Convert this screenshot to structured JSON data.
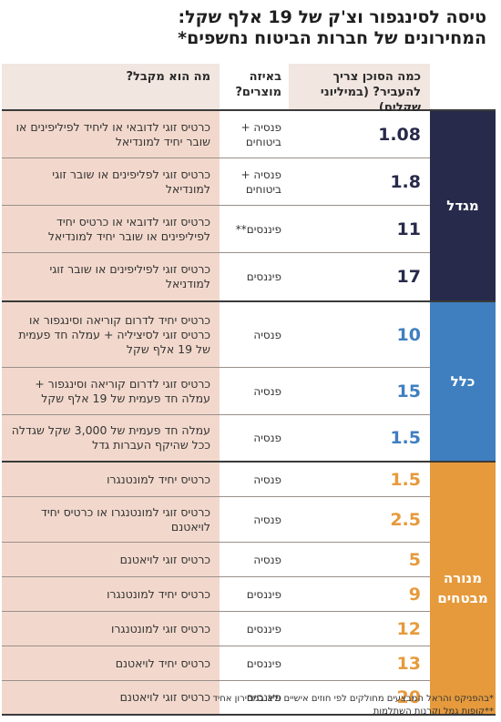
{
  "title": {
    "line1": "טיסה לסינגפור וצ'ק של 19 אלף שקל:",
    "line2": "המחירונים של חברות הביטוח נחשפים*"
  },
  "headers": {
    "amount": "כמה הסוכן צריך להעביר? (במיליוני שקלים)",
    "products": "באיזה מוצרים?",
    "reward": "מה הוא מקבל?"
  },
  "groups": [
    {
      "name": "מגדל",
      "color": "#272a4a",
      "amount_color": "#272a4a",
      "rows": [
        {
          "amount": "1.08",
          "products": "פנסיה + ביטוחים",
          "reward": "כרטיס זוגי לדובאי או ליחיד לפיליפינים או שובר יחיד למונדיאל"
        },
        {
          "amount": "1.8",
          "products": "פנסיה + ביטוחים",
          "reward": "כרטיס זוגי לפליפינים או שובר זוגי למונדיאל"
        },
        {
          "amount": "11",
          "products": "פיננסים**",
          "reward": "כרטיס זוגי לדובאי או כרטיס יחיד לפיליפינים או שובר יחיד למונדיאל"
        },
        {
          "amount": "17",
          "products": "פיננסים",
          "reward": "כרטיס זוגי לפיליפינים או שובר זוגי למודניאל"
        }
      ]
    },
    {
      "name": "כלל",
      "color": "#3f7fc0",
      "amount_color": "#3f7fc0",
      "rows": [
        {
          "amount": "10",
          "products": "פנסיה",
          "reward": "כרטיס יחיד לדרום קוריאה וסינגפור או כרטיס זוגי לסיציליה + עמלה חד פעמית של 19 אלף שקל"
        },
        {
          "amount": "15",
          "products": "פנסיה",
          "reward": "כרטיס זוגי לדרום קוריאה וסינגפור + עמלה חד פעמית של 19 אלף שקל"
        },
        {
          "amount": "1.5",
          "products": "פנסיה",
          "reward": "עמלה חד פעמית של 3,000 שקל שגדלה ככל שהיקף העברות גדל"
        }
      ]
    },
    {
      "name": "מנורה מבטחים",
      "color": "#e69a3c",
      "amount_color": "#e69a3c",
      "rows": [
        {
          "amount": "1.5",
          "products": "פנסיה",
          "reward": "כרטיס יחיד למונטנגרו"
        },
        {
          "amount": "2.5",
          "products": "פנסיה",
          "reward": "כרטיס זוגי למונטנגרו או כרטיס יחיד לויאטנם"
        },
        {
          "amount": "5",
          "products": "פנסיה",
          "reward": "כרטיס זוגי לויאטנם"
        },
        {
          "amount": "9",
          "products": "פיננסים",
          "reward": "כרטיס יחיד למונטנגרו"
        },
        {
          "amount": "12",
          "products": "פיננסים",
          "reward": "כרטיס זוגי למונטנגרו"
        },
        {
          "amount": "13",
          "products": "פיננסים",
          "reward": "כרטיס יחיד לויאטנם"
        },
        {
          "amount": "20",
          "products": "פיננסים",
          "reward": "כרטיס זוגי לויאטנם"
        }
      ]
    }
  ],
  "footnotes": [
    "*בהפניקס והראל המבצעים מחולקים לפי חוזים אישיים ולא במחירון אחיד",
    "**קופות גמל וקרנות השתלמות"
  ]
}
